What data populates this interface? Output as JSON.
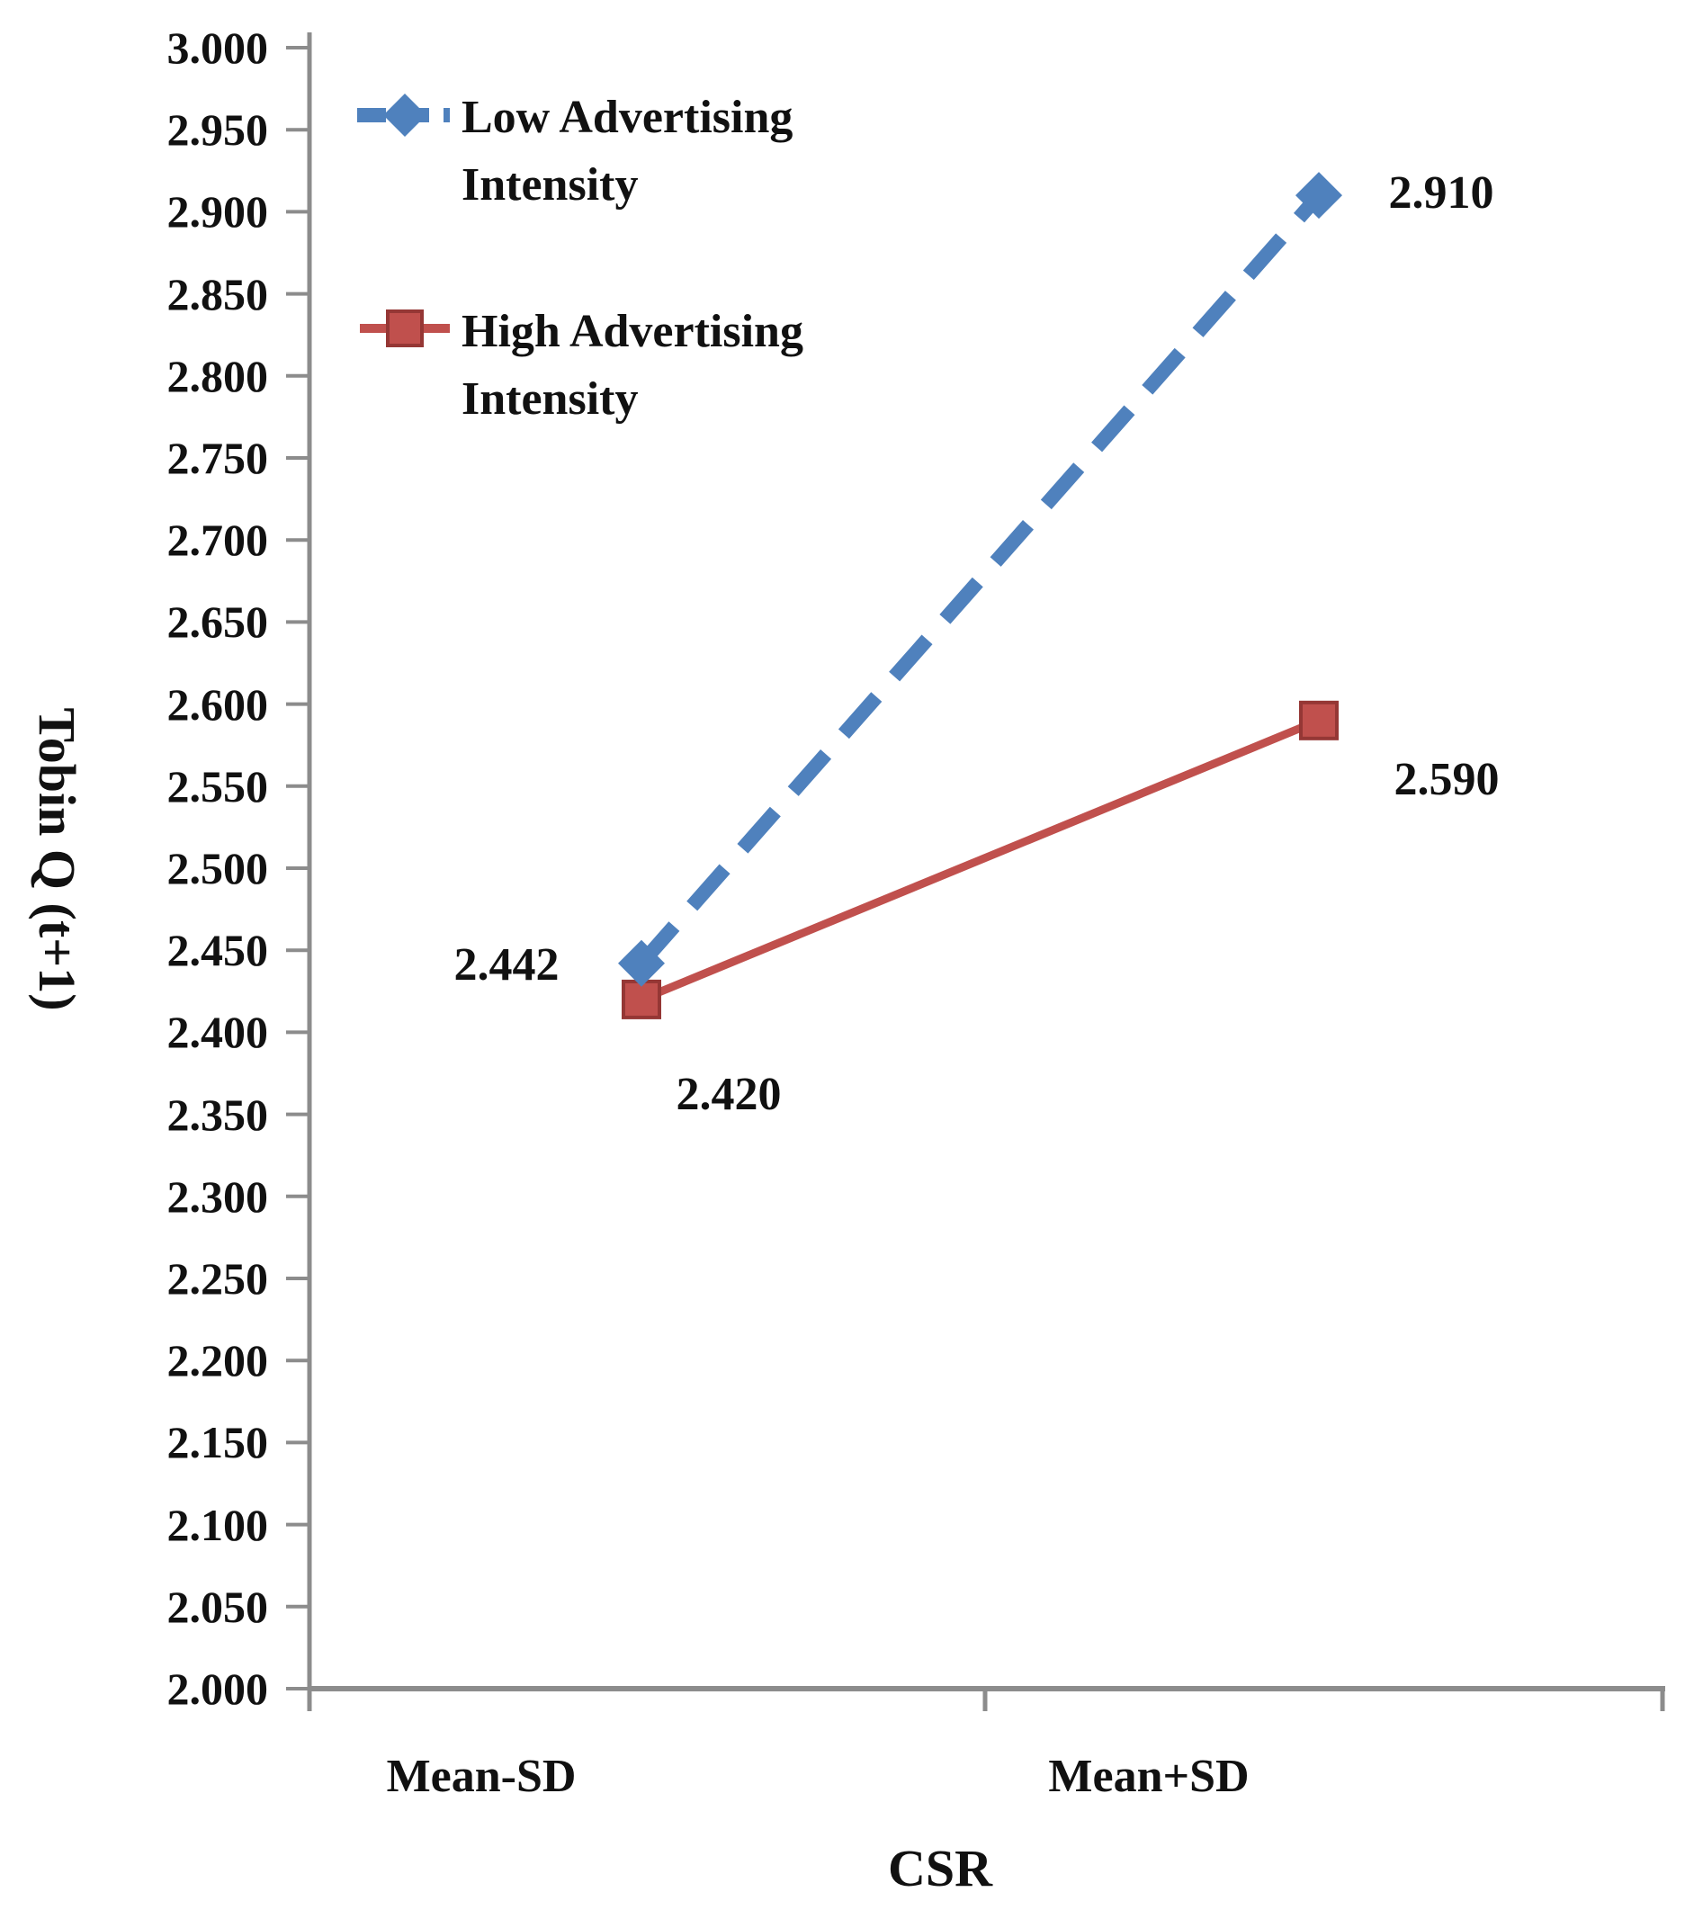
{
  "chart_data": {
    "type": "line",
    "title": "",
    "xlabel": "CSR",
    "ylabel": "Tobin Q (t+1)",
    "categories": [
      "Mean-SD",
      "Mean+SD"
    ],
    "series": [
      {
        "name": "Low Advertising Intensity",
        "values": [
          2.442,
          2.91
        ],
        "data_labels": [
          "2.442",
          "2.910"
        ],
        "color": "#4F81BD",
        "line_style": "dashed",
        "marker": "diamond"
      },
      {
        "name": "High Advertising Intensity",
        "values": [
          2.42,
          2.59
        ],
        "data_labels": [
          "2.420",
          "2.590"
        ],
        "color": "#C0504D",
        "marker_border": "#953735",
        "line_style": "solid",
        "marker": "square"
      }
    ],
    "ylim": [
      2.0,
      3.0
    ],
    "ytick_step": 0.05,
    "ytick_labels": [
      "3.000",
      "2.950",
      "2.900",
      "2.850",
      "2.800",
      "2.750",
      "2.700",
      "2.650",
      "2.600",
      "2.550",
      "2.500",
      "2.450",
      "2.400",
      "2.350",
      "2.300",
      "2.250",
      "2.200",
      "2.150",
      "2.100",
      "2.050",
      "2.000"
    ],
    "grid": false,
    "legend_position": "top-left-inside"
  },
  "legend": {
    "entries": [
      {
        "lines": [
          "Low Advertising",
          "Intensity"
        ],
        "color": "#4F81BD",
        "marker": "diamond",
        "line_style": "dashed"
      },
      {
        "lines": [
          "High Advertising",
          "Intensity"
        ],
        "color": "#C0504D",
        "marker": "square",
        "line_style": "solid"
      }
    ]
  },
  "colors": {
    "axis": "#8C8C8C",
    "text": "#111111",
    "series_low": "#4F81BD",
    "series_high": "#C0504D",
    "series_high_border": "#953735",
    "background": "#FFFFFF"
  }
}
